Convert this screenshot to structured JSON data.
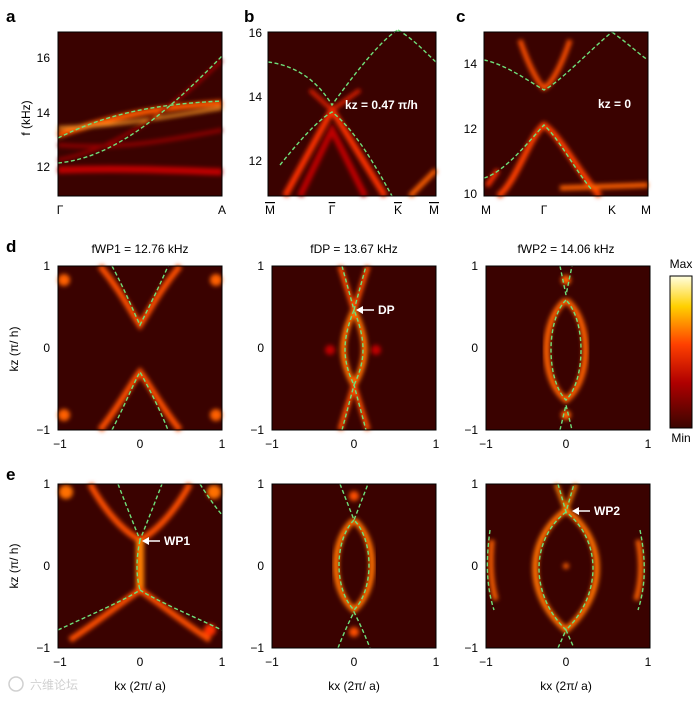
{
  "panels": {
    "a": {
      "letter": "a",
      "ylabel": "f (kHz)",
      "yticks": [
        "16",
        "14",
        "12"
      ],
      "xticks": [
        "Γ",
        "A"
      ]
    },
    "b": {
      "letter": "b",
      "yticks": [
        "16",
        "14",
        "12"
      ],
      "xticks": [
        "M",
        "Γ",
        "K",
        "M"
      ],
      "annotation": "kz = 0.47 π/h"
    },
    "c": {
      "letter": "c",
      "yticks": [
        "14",
        "12",
        "10"
      ],
      "xticks": [
        "M",
        "Γ",
        "K",
        "M"
      ],
      "annotation": "kz = 0"
    },
    "d": {
      "letter": "d",
      "ylabel": "kz (π/ h)",
      "titles": [
        "fWP1 = 12.76 kHz",
        "fDP = 13.67 kHz",
        "fWP2 = 14.06 kHz"
      ],
      "point_label": "DP"
    },
    "e": {
      "letter": "e",
      "ylabel": "kz (π/ h)",
      "xlabel": "kx (2π/ a)",
      "point_labels": [
        "WP1",
        "WP2"
      ]
    },
    "ticks": {
      "minus_one": "−1",
      "zero": "0",
      "one": "1"
    }
  },
  "colorbar": {
    "max_label": "Max",
    "min_label": "Min",
    "colors": [
      "#3a0500",
      "#b00000",
      "#ff4000",
      "#ffd000",
      "#ffffe0"
    ]
  },
  "watermark": "六维论坛"
}
